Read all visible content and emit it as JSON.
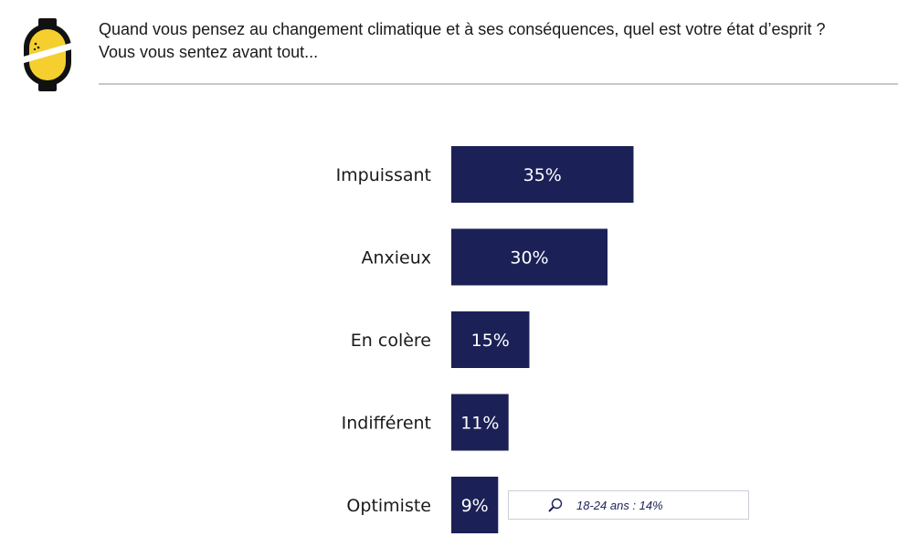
{
  "logo": {
    "icon": "coin-logo-icon",
    "colors": {
      "fill": "#f5cf2e",
      "outline": "#111111"
    }
  },
  "question": {
    "line1": "Quand vous pensez au changement climatique et à ses conséquences, quel est votre état d’esprit ?",
    "line2": "Vous vous sentez avant tout..."
  },
  "chart_data": {
    "type": "bar",
    "orientation": "horizontal",
    "categories": [
      "Impuissant",
      "Anxieux",
      "En colère",
      "Indifférent",
      "Optimiste"
    ],
    "values": [
      35,
      30,
      15,
      11,
      9
    ],
    "value_labels": [
      "35%",
      "30%",
      "15%",
      "11%",
      "9%"
    ],
    "unit": "%",
    "bar_color": "#1b2157",
    "grid": false,
    "title": "",
    "xlabel": "",
    "ylabel": ""
  },
  "callout": {
    "icon": "magnifier-icon",
    "text": "18-24 ans : 14%"
  }
}
